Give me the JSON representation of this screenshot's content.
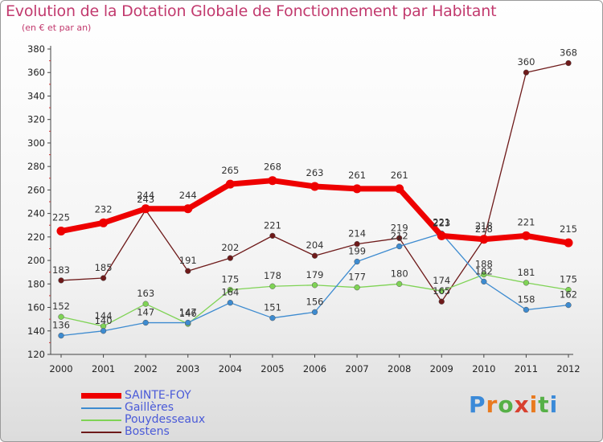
{
  "title": "Evolution de la Dotation Globale de Fonctionnement par Habitant",
  "subtitle": "(en € et par an)",
  "logo_text": "Proxiti",
  "chart_data": {
    "type": "line",
    "x": [
      "2000",
      "2001",
      "2002",
      "2003",
      "2004",
      "2005",
      "2006",
      "2007",
      "2008",
      "2009",
      "2010",
      "2011",
      "2012"
    ],
    "ylim": [
      120,
      380
    ],
    "yticks": [
      120,
      140,
      160,
      180,
      200,
      220,
      240,
      260,
      280,
      300,
      320,
      340,
      360,
      380
    ],
    "grid": false,
    "legend_position": "bottom-left",
    "series": [
      {
        "name": "SAINTE-FOY",
        "color": "#ee0000",
        "values": [
          225,
          232,
          244,
          244,
          265,
          268,
          263,
          261,
          261,
          221,
          218,
          221,
          215
        ]
      },
      {
        "name": "Gailleres_display",
        "display": "Gaillères",
        "color": "#3d8bd0",
        "values": [
          136,
          140,
          147,
          147,
          164,
          151,
          156,
          199,
          212,
          223,
          182,
          158,
          162
        ]
      },
      {
        "name": "Pouydesseaux",
        "color": "#7fd355",
        "values": [
          152,
          144,
          163,
          146,
          175,
          178,
          179,
          177,
          180,
          174,
          188,
          181,
          175
        ]
      },
      {
        "name": "Bostens",
        "color": "#6e1a1a",
        "values": [
          183,
          185,
          243,
          191,
          202,
          221,
          204,
          214,
          219,
          165,
          218,
          360,
          368
        ]
      }
    ]
  },
  "colors": {
    "title": "#c23a6e",
    "legend_text": "#4a5ad8"
  }
}
